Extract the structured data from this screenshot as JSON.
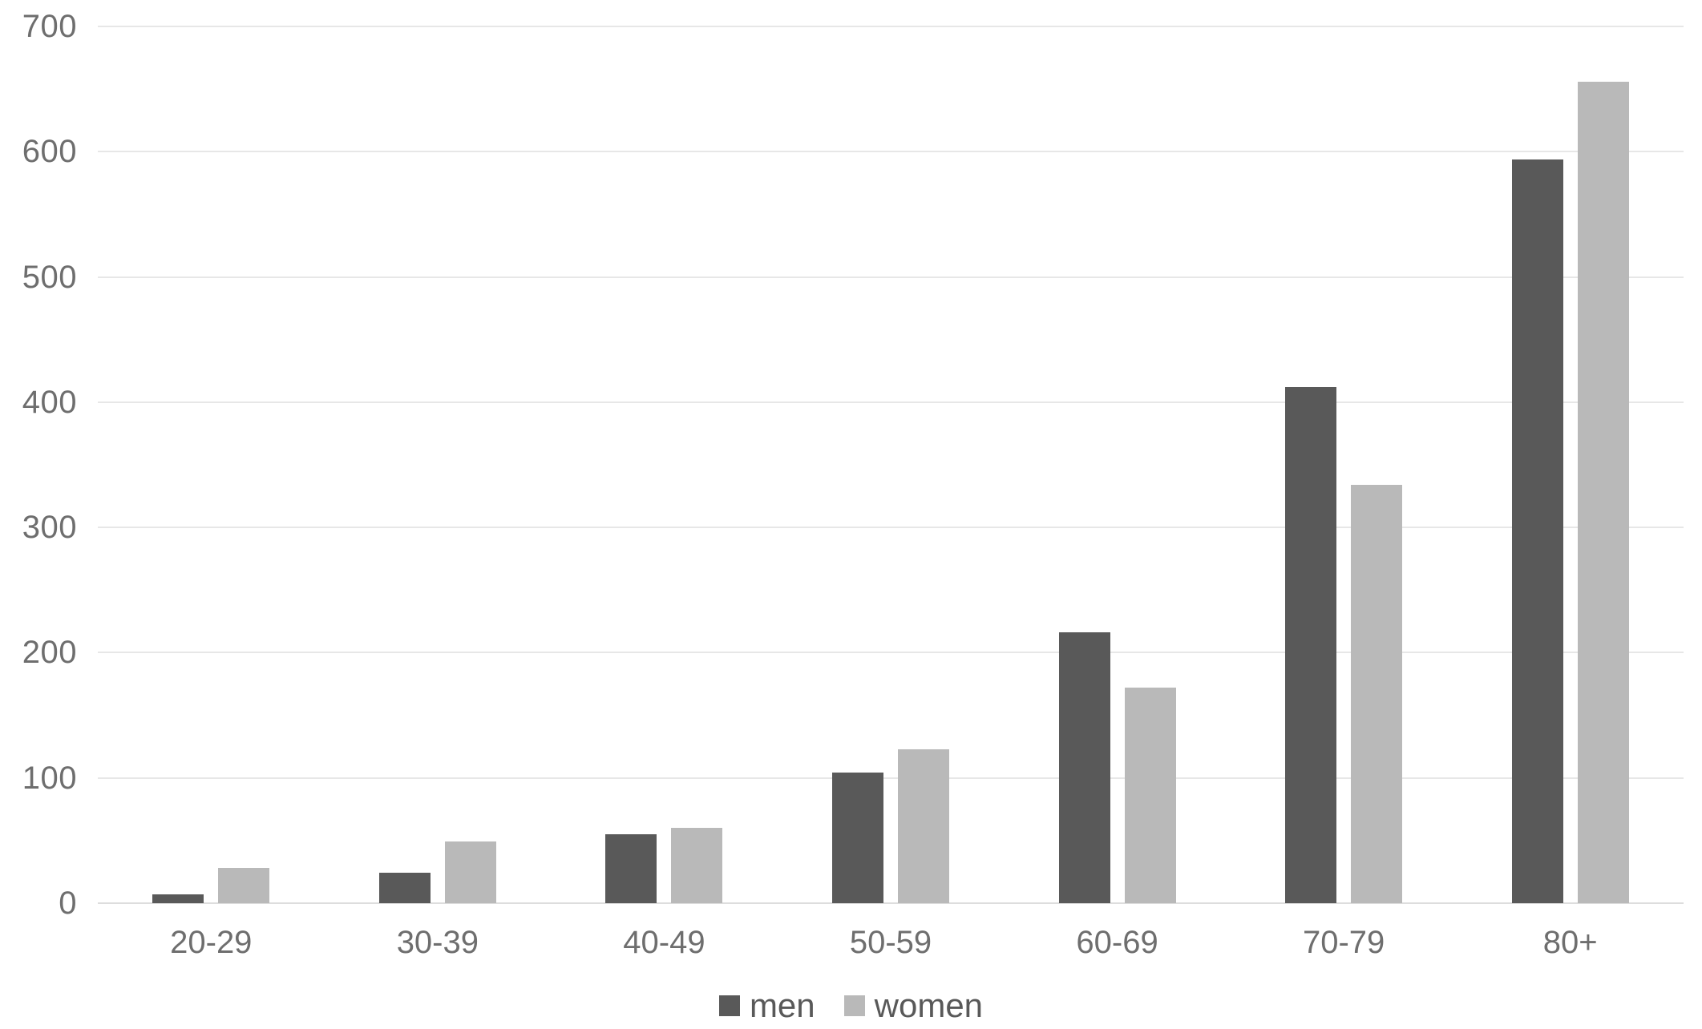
{
  "chart_data": {
    "type": "bar",
    "title": "",
    "xlabel": "",
    "ylabel": "",
    "categories": [
      "20-29",
      "30-39",
      "40-49",
      "50-59",
      "60-69",
      "70-79",
      "80+"
    ],
    "series": [
      {
        "name": "men",
        "color": "#595959",
        "values": [
          7,
          24,
          55,
          104,
          216,
          412,
          594
        ]
      },
      {
        "name": "women",
        "color": "#b9b9b9",
        "values": [
          28,
          49,
          60,
          123,
          172,
          334,
          656
        ]
      }
    ],
    "ylim": [
      0,
      700
    ],
    "ytick_step": 100,
    "ytick_labels": [
      "0",
      "100",
      "200",
      "300",
      "400",
      "500",
      "600",
      "700"
    ],
    "grid": true,
    "legend_position": "bottom"
  },
  "colors": {
    "background": "#ffffff",
    "gridline": "#e7e7e7",
    "baseline": "#dddddd",
    "axis_text": "#6e6e6e",
    "legend_text": "#595959",
    "men_bar": "#595959",
    "women_bar": "#b9b9b9"
  },
  "legend": {
    "men_label": "men",
    "women_label": "women"
  }
}
